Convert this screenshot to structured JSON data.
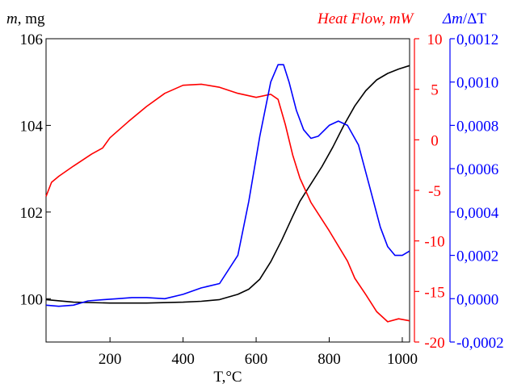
{
  "chart_data": {
    "type": "line",
    "x_axis": {
      "label": "T,°C",
      "range": [
        25,
        1020
      ],
      "ticks": [
        200,
        400,
        600,
        800,
        1000
      ]
    },
    "y_axes": {
      "mass": {
        "label_italic": "m",
        "label_rest": ", mg",
        "color": "#000000",
        "range": [
          99,
          106
        ],
        "ticks": [
          100,
          102,
          104,
          106
        ]
      },
      "heat_flow": {
        "label": "Heat Flow, mW",
        "color": "#ff0000",
        "range": [
          -20,
          10
        ],
        "ticks": [
          -20,
          -15,
          -10,
          -5,
          0,
          5,
          10
        ]
      },
      "dm_dt": {
        "label_italic": "Δm",
        "label_rest": "/ΔT",
        "color": "#0000ff",
        "range": [
          -0.0002,
          0.0012
        ],
        "ticks": [
          "-0,0002",
          "0,0000",
          "0,0002",
          "0,0004",
          "0,0006",
          "0,0008",
          "0,0010",
          "0,0012"
        ],
        "tick_values": [
          -0.0002,
          0,
          0.0002,
          0.0004,
          0.0006,
          0.0008,
          0.001,
          0.0012
        ]
      }
    },
    "series": [
      {
        "axis": "mass",
        "color": "#000000",
        "points": [
          [
            25,
            99.98
          ],
          [
            100,
            99.92
          ],
          [
            200,
            99.9
          ],
          [
            300,
            99.9
          ],
          [
            400,
            99.92
          ],
          [
            450,
            99.94
          ],
          [
            500,
            99.98
          ],
          [
            550,
            100.1
          ],
          [
            580,
            100.22
          ],
          [
            610,
            100.45
          ],
          [
            640,
            100.85
          ],
          [
            670,
            101.35
          ],
          [
            700,
            101.9
          ],
          [
            720,
            102.25
          ],
          [
            750,
            102.65
          ],
          [
            780,
            103.05
          ],
          [
            810,
            103.5
          ],
          [
            840,
            104.0
          ],
          [
            870,
            104.45
          ],
          [
            900,
            104.8
          ],
          [
            930,
            105.05
          ],
          [
            960,
            105.2
          ],
          [
            990,
            105.3
          ],
          [
            1020,
            105.38
          ]
        ]
      },
      {
        "axis": "heat_flow",
        "color": "#ff0000",
        "points": [
          [
            25,
            -5.6
          ],
          [
            40,
            -4.2
          ],
          [
            60,
            -3.6
          ],
          [
            100,
            -2.6
          ],
          [
            150,
            -1.4
          ],
          [
            180,
            -0.8
          ],
          [
            200,
            0.2
          ],
          [
            250,
            1.8
          ],
          [
            300,
            3.3
          ],
          [
            350,
            4.6
          ],
          [
            400,
            5.4
          ],
          [
            450,
            5.5
          ],
          [
            500,
            5.2
          ],
          [
            550,
            4.6
          ],
          [
            600,
            4.2
          ],
          [
            640,
            4.5
          ],
          [
            660,
            4.0
          ],
          [
            680,
            1.5
          ],
          [
            700,
            -1.5
          ],
          [
            720,
            -3.8
          ],
          [
            750,
            -6.2
          ],
          [
            800,
            -9.0
          ],
          [
            850,
            -12.0
          ],
          [
            870,
            -13.7
          ],
          [
            900,
            -15.3
          ],
          [
            930,
            -17.0
          ],
          [
            960,
            -18.0
          ],
          [
            990,
            -17.7
          ],
          [
            1020,
            -17.9
          ]
        ]
      },
      {
        "axis": "dm_dt",
        "color": "#0000ff",
        "points": [
          [
            25,
            -3e-05
          ],
          [
            60,
            -3.5e-05
          ],
          [
            100,
            -3e-05
          ],
          [
            140,
            -1e-05
          ],
          [
            180,
            -5e-06
          ],
          [
            220,
            0.0
          ],
          [
            260,
            5e-06
          ],
          [
            300,
            5e-06
          ],
          [
            350,
            0.0
          ],
          [
            400,
            2e-05
          ],
          [
            450,
            5e-05
          ],
          [
            500,
            7e-05
          ],
          [
            550,
            0.0002
          ],
          [
            580,
            0.00045
          ],
          [
            610,
            0.00075
          ],
          [
            640,
            0.001
          ],
          [
            660,
            0.00108
          ],
          [
            675,
            0.00108
          ],
          [
            690,
            0.001
          ],
          [
            710,
            0.00087
          ],
          [
            730,
            0.00078
          ],
          [
            750,
            0.00074
          ],
          [
            770,
            0.00075
          ],
          [
            800,
            0.0008
          ],
          [
            825,
            0.00082
          ],
          [
            850,
            0.0008
          ],
          [
            880,
            0.00071
          ],
          [
            910,
            0.00052
          ],
          [
            940,
            0.00033
          ],
          [
            960,
            0.00024
          ],
          [
            980,
            0.0002
          ],
          [
            1000,
            0.0002
          ],
          [
            1020,
            0.00022
          ]
        ]
      }
    ],
    "grid": false,
    "legend": "none"
  }
}
